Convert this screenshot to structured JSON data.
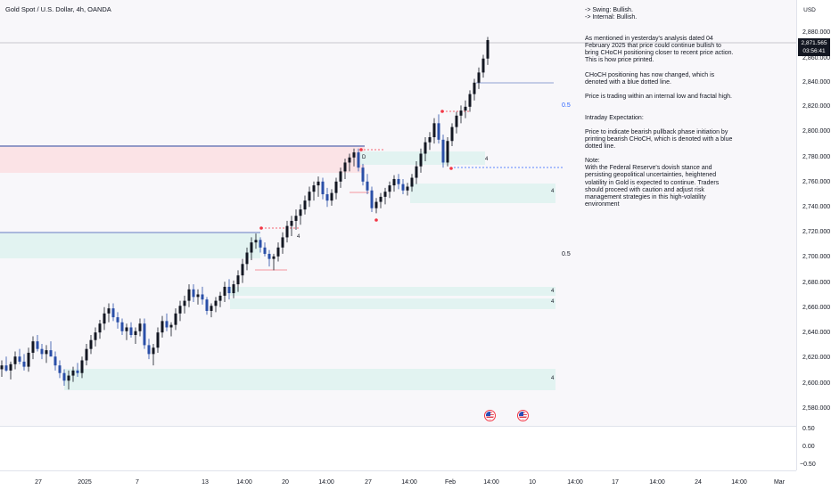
{
  "header": {
    "symbol_title": "Gold Spot / U.S. Dollar, 4h, OANDA",
    "currency": "USD"
  },
  "price_tag": {
    "price": "2,871.565",
    "countdown": "03:56:41"
  },
  "price_axis": {
    "labels": [
      "2,880.000",
      "2,860.000",
      "2,840.000",
      "2,820.000",
      "2,800.000",
      "2,780.000",
      "2,760.000",
      "2,740.000",
      "2,720.000",
      "2,700.000",
      "2,680.000",
      "2,660.000",
      "2,640.000",
      "2,620.000",
      "2,600.000",
      "2,580.000"
    ]
  },
  "oscillator_axis": {
    "labels": [
      "0.50",
      "0.00",
      "−0.50"
    ]
  },
  "time_axis": {
    "labels": [
      "27",
      "2025",
      "7",
      "13",
      "14:00",
      "20",
      "14:00",
      "27",
      "14:00",
      "Feb",
      "14:00",
      "10",
      "14:00",
      "17",
      "14:00",
      "24",
      "14:00",
      "Mar"
    ]
  },
  "analysis_text": {
    "swing": "-> Swing:  Bullish.",
    "internal": "-> Internal:  Bullish.",
    "para1": "As mentioned in yesterday's analysis dated 04 February 2025 that price could continue bullish to bring CHoCH positioning closer to recent price action.  This is how price printed.",
    "para2": "CHoCH positioning has now changed, which is denoted with a blue dotted line.",
    "para3": "Price is trading within an internal low and fractal high.",
    "heading": "Intraday Expectation:",
    "para4": "Price to indicate bearish pullback phase initiation by printing bearish CHoCH, which is denoted with a blue dotted line.",
    "note_label": "Note:",
    "note_body": "With the Federal Reserve's dovish stance and persisting geopolitical uncertainties, heightened volatility in Gold is expected to continue. Traders should proceed with caution and adjust risk management strategies in this high-volatility environment"
  },
  "chart_annotations": {
    "half_label_upper": "0.5",
    "half_label_lower": "0.5",
    "zone_marker": "4",
    "bos_marker": "D"
  },
  "event_icons": [
    "us-flag-icon",
    "us-flag-icon"
  ],
  "colors": {
    "bull_candle": "#131722",
    "bear_candle": "#2a4fa8",
    "demand_zone": "#e2f3f1",
    "supply_zone": "#fbe3e6",
    "choch_line": "#2962ff",
    "fractal_marker": "#f23645",
    "price_tag_bg": "#131722"
  },
  "chart_data": {
    "type": "candlestick",
    "title": "Gold Spot / U.S. Dollar, 4h, OANDA",
    "x": [
      "27",
      "2025",
      "7",
      "13",
      "14:00",
      "20",
      "14:00",
      "27",
      "14:00",
      "Feb",
      "14:00",
      "10",
      "14:00",
      "17",
      "14:00",
      "24",
      "14:00",
      "Mar"
    ],
    "ylim": [
      2573,
      2888
    ],
    "last_price": 2871.565,
    "candles": [
      [
        2612,
        2619,
        2606,
        2615
      ],
      [
        2615,
        2622,
        2610,
        2611
      ],
      [
        2611,
        2618,
        2604,
        2616
      ],
      [
        2616,
        2626,
        2612,
        2622
      ],
      [
        2622,
        2628,
        2616,
        2618
      ],
      [
        2618,
        2624,
        2611,
        2614
      ],
      [
        2614,
        2629,
        2610,
        2625
      ],
      [
        2625,
        2638,
        2620,
        2634
      ],
      [
        2634,
        2639,
        2626,
        2628
      ],
      [
        2628,
        2632,
        2620,
        2624
      ],
      [
        2624,
        2631,
        2617,
        2627
      ],
      [
        2627,
        2634,
        2623,
        2622
      ],
      [
        2622,
        2626,
        2611,
        2615
      ],
      [
        2615,
        2619,
        2605,
        2609
      ],
      [
        2609,
        2612,
        2599,
        2603
      ],
      [
        2603,
        2611,
        2596,
        2607
      ],
      [
        2607,
        2614,
        2602,
        2611
      ],
      [
        2611,
        2617,
        2606,
        2609
      ],
      [
        2609,
        2622,
        2605,
        2619
      ],
      [
        2619,
        2632,
        2615,
        2628
      ],
      [
        2628,
        2639,
        2624,
        2635
      ],
      [
        2635,
        2645,
        2630,
        2641
      ],
      [
        2641,
        2651,
        2636,
        2648
      ],
      [
        2648,
        2661,
        2643,
        2656
      ],
      [
        2656,
        2664,
        2649,
        2660
      ],
      [
        2660,
        2664,
        2650,
        2653
      ],
      [
        2653,
        2657,
        2644,
        2649
      ],
      [
        2649,
        2652,
        2639,
        2642
      ],
      [
        2642,
        2648,
        2635,
        2645
      ],
      [
        2645,
        2649,
        2637,
        2639
      ],
      [
        2639,
        2645,
        2632,
        2642
      ],
      [
        2642,
        2652,
        2638,
        2648
      ],
      [
        2648,
        2652,
        2628,
        2631
      ],
      [
        2631,
        2636,
        2620,
        2624
      ],
      [
        2624,
        2632,
        2615,
        2629
      ],
      [
        2629,
        2645,
        2625,
        2641
      ],
      [
        2641,
        2654,
        2637,
        2650
      ],
      [
        2650,
        2656,
        2642,
        2645
      ],
      [
        2645,
        2649,
        2638,
        2647
      ],
      [
        2647,
        2660,
        2643,
        2656
      ],
      [
        2656,
        2666,
        2650,
        2662
      ],
      [
        2662,
        2670,
        2656,
        2666
      ],
      [
        2666,
        2679,
        2661,
        2675
      ],
      [
        2675,
        2679,
        2665,
        2669
      ],
      [
        2669,
        2675,
        2663,
        2671
      ],
      [
        2671,
        2677,
        2663,
        2667
      ],
      [
        2667,
        2669,
        2655,
        2658
      ],
      [
        2658,
        2664,
        2653,
        2662
      ],
      [
        2662,
        2669,
        2657,
        2666
      ],
      [
        2666,
        2673,
        2661,
        2670
      ],
      [
        2670,
        2681,
        2665,
        2677
      ],
      [
        2677,
        2683,
        2667,
        2672
      ],
      [
        2672,
        2682,
        2668,
        2679
      ],
      [
        2679,
        2690,
        2673,
        2686
      ],
      [
        2686,
        2699,
        2680,
        2695
      ],
      [
        2695,
        2708,
        2690,
        2704
      ],
      [
        2704,
        2716,
        2698,
        2712
      ],
      [
        2712,
        2719,
        2707,
        2714
      ],
      [
        2714,
        2716,
        2704,
        2708
      ],
      [
        2708,
        2712,
        2701,
        2703
      ],
      [
        2703,
        2706,
        2693,
        2699
      ],
      [
        2699,
        2703,
        2690,
        2701
      ],
      [
        2701,
        2712,
        2697,
        2708
      ],
      [
        2708,
        2720,
        2703,
        2716
      ],
      [
        2716,
        2729,
        2712,
        2725
      ],
      [
        2725,
        2733,
        2717,
        2729
      ],
      [
        2729,
        2738,
        2722,
        2733
      ],
      [
        2733,
        2742,
        2726,
        2738
      ],
      [
        2738,
        2749,
        2734,
        2745
      ],
      [
        2745,
        2756,
        2740,
        2752
      ],
      [
        2752,
        2760,
        2745,
        2757
      ],
      [
        2757,
        2764,
        2748,
        2760
      ],
      [
        2760,
        2763,
        2746,
        2750
      ],
      [
        2750,
        2755,
        2740,
        2745
      ],
      [
        2745,
        2754,
        2741,
        2751
      ],
      [
        2751,
        2763,
        2746,
        2760
      ],
      [
        2760,
        2771,
        2755,
        2768
      ],
      [
        2768,
        2778,
        2762,
        2775
      ],
      [
        2775,
        2782,
        2768,
        2779
      ],
      [
        2779,
        2786,
        2772,
        2783
      ],
      [
        2783,
        2786,
        2768,
        2771
      ],
      [
        2771,
        2774,
        2757,
        2760
      ],
      [
        2760,
        2766,
        2750,
        2753
      ],
      [
        2753,
        2756,
        2736,
        2739
      ],
      [
        2739,
        2747,
        2735,
        2744
      ],
      [
        2744,
        2751,
        2739,
        2748
      ],
      [
        2748,
        2755,
        2742,
        2752
      ],
      [
        2752,
        2760,
        2747,
        2757
      ],
      [
        2757,
        2765,
        2752,
        2762
      ],
      [
        2762,
        2766,
        2754,
        2758
      ],
      [
        2758,
        2762,
        2750,
        2753
      ],
      [
        2753,
        2759,
        2749,
        2756
      ],
      [
        2756,
        2766,
        2752,
        2763
      ],
      [
        2763,
        2776,
        2758,
        2772
      ],
      [
        2772,
        2786,
        2767,
        2782
      ],
      [
        2782,
        2795,
        2776,
        2791
      ],
      [
        2791,
        2799,
        2785,
        2795
      ],
      [
        2795,
        2810,
        2790,
        2806
      ],
      [
        2806,
        2813,
        2790,
        2793
      ],
      [
        2793,
        2797,
        2771,
        2775
      ],
      [
        2775,
        2795,
        2772,
        2792
      ],
      [
        2792,
        2806,
        2788,
        2803
      ],
      [
        2803,
        2815,
        2798,
        2812
      ],
      [
        2812,
        2820,
        2806,
        2816
      ],
      [
        2816,
        2824,
        2810,
        2819
      ],
      [
        2819,
        2832,
        2815,
        2829
      ],
      [
        2829,
        2841,
        2824,
        2838
      ],
      [
        2838,
        2850,
        2833,
        2846
      ],
      [
        2846,
        2860,
        2842,
        2857
      ],
      [
        2857,
        2874,
        2852,
        2871.565
      ]
    ]
  }
}
